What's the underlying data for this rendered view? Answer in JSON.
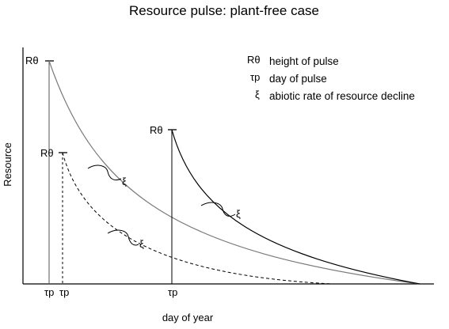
{
  "title": "Resource pulse: plant-free case",
  "xlabel": "day of year",
  "ylabel": "Resource",
  "legend": [
    {
      "symbol": "Rθ",
      "text": "height of pulse"
    },
    {
      "symbol": "τp",
      "text": "day of pulse"
    },
    {
      "symbol": "ξ",
      "text": "abiotic rate of resource decline"
    }
  ],
  "pulses": [
    {
      "id": "pulse-1",
      "height_label": "Rθ",
      "day_label": "τp",
      "decline_label": "ξ",
      "line_style": "solid",
      "color": "#777777"
    },
    {
      "id": "pulse-2",
      "height_label": "Rθ",
      "day_label": "τp",
      "decline_label": "ξ",
      "line_style": "dashed",
      "color": "#000000"
    },
    {
      "id": "pulse-3",
      "height_label": "Rθ",
      "day_label": "τp",
      "decline_label": "ξ",
      "line_style": "solid",
      "color": "#000000"
    }
  ]
}
